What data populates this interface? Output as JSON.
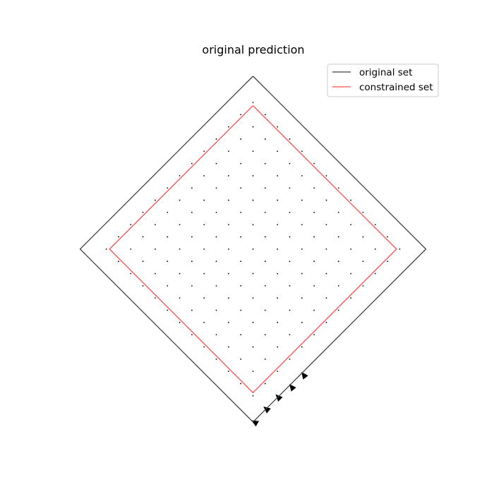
{
  "chart_data": {
    "type": "scatter",
    "title": "original prediction",
    "xlabel": "",
    "ylabel": "",
    "axes_visible": false,
    "grid": false,
    "xlim": [
      -1.25,
      1.25
    ],
    "ylim": [
      -1.25,
      1.25
    ],
    "legend_position": "top-right",
    "legend": [
      {
        "label": "original set",
        "color": "#404040"
      },
      {
        "label": "constrained set",
        "color": "#ff4d4d"
      }
    ],
    "series": [
      {
        "name": "original set",
        "kind": "polygon",
        "color": "#404040",
        "points": [
          [
            0,
            1
          ],
          [
            1,
            0
          ],
          [
            0,
            -1
          ],
          [
            -1,
            0
          ],
          [
            0,
            1
          ]
        ]
      },
      {
        "name": "constrained set",
        "kind": "polygon",
        "color": "#ff4d4d",
        "points": [
          [
            0,
            0.83
          ],
          [
            0.83,
            0
          ],
          [
            0,
            -0.83
          ],
          [
            -0.83,
            0
          ],
          [
            0,
            0.83
          ]
        ]
      }
    ],
    "vector_field": {
      "description": "prediction vectors on a lattice inside the original set",
      "lattice_spacing": 0.1,
      "lattice_rotation_deg": 45,
      "color": "#000000",
      "visible_arrows": [
        {
          "at": [
            -0.01,
            -0.99
          ],
          "vector": [
            -0.035,
            0.02
          ]
        },
        {
          "at": [
            0.06,
            -0.91
          ],
          "vector": [
            -0.03,
            0.025
          ]
        },
        {
          "at": [
            0.13,
            -0.84
          ],
          "vector": [
            -0.025,
            0.025
          ]
        },
        {
          "at": [
            0.21,
            -0.78
          ],
          "vector": [
            -0.02,
            0.025
          ]
        },
        {
          "at": [
            0.28,
            -0.71
          ],
          "vector": [
            -0.015,
            0.02
          ]
        }
      ]
    }
  }
}
